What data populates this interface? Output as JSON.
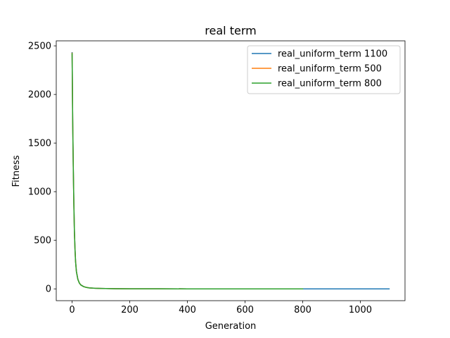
{
  "chart_data": {
    "type": "line",
    "title": "real term",
    "xlabel": "Generation",
    "ylabel": "Fitness",
    "xlim": [
      -55,
      1155
    ],
    "ylim": [
      -121.5,
      2551.5
    ],
    "xticks": [
      0,
      200,
      400,
      600,
      800,
      1000
    ],
    "yticks": [
      0,
      500,
      1000,
      1500,
      2000,
      2500
    ],
    "grid": false,
    "legend_position": "top-right",
    "series": [
      {
        "name": "real_uniform_term 1100",
        "color": "#1f77b4",
        "x": [
          0,
          2,
          4,
          6,
          8,
          10,
          12,
          15,
          20,
          25,
          30,
          40,
          50,
          60,
          80,
          100,
          150,
          200,
          300,
          400,
          500,
          600,
          700,
          800,
          900,
          1000,
          1100
        ],
        "y": [
          2430,
          1750,
          1280,
          900,
          600,
          420,
          290,
          180,
          100,
          62,
          42,
          24,
          15,
          10,
          6,
          4,
          2,
          1,
          1,
          0,
          0,
          0,
          0,
          0,
          0,
          0,
          0
        ]
      },
      {
        "name": "real_uniform_term 500",
        "color": "#ff7f0e",
        "x": [
          0,
          2,
          4,
          6,
          8,
          10,
          12,
          15,
          20,
          25,
          30,
          40,
          50,
          60,
          80,
          100,
          150,
          200,
          300,
          400,
          500
        ],
        "y": [
          2425,
          1740,
          1270,
          890,
          595,
          415,
          285,
          178,
          98,
          61,
          41,
          23,
          15,
          10,
          6,
          4,
          2,
          1,
          1,
          0,
          0
        ]
      },
      {
        "name": "real_uniform_term 800",
        "color": "#2ca02c",
        "x": [
          0,
          2,
          4,
          6,
          8,
          10,
          12,
          15,
          20,
          25,
          30,
          40,
          50,
          60,
          80,
          100,
          150,
          200,
          300,
          400,
          500,
          600,
          700,
          800
        ],
        "y": [
          2420,
          1730,
          1260,
          880,
          590,
          410,
          280,
          175,
          97,
          60,
          40,
          23,
          14,
          10,
          6,
          4,
          2,
          1,
          1,
          0,
          0,
          0,
          0,
          0
        ]
      }
    ]
  }
}
